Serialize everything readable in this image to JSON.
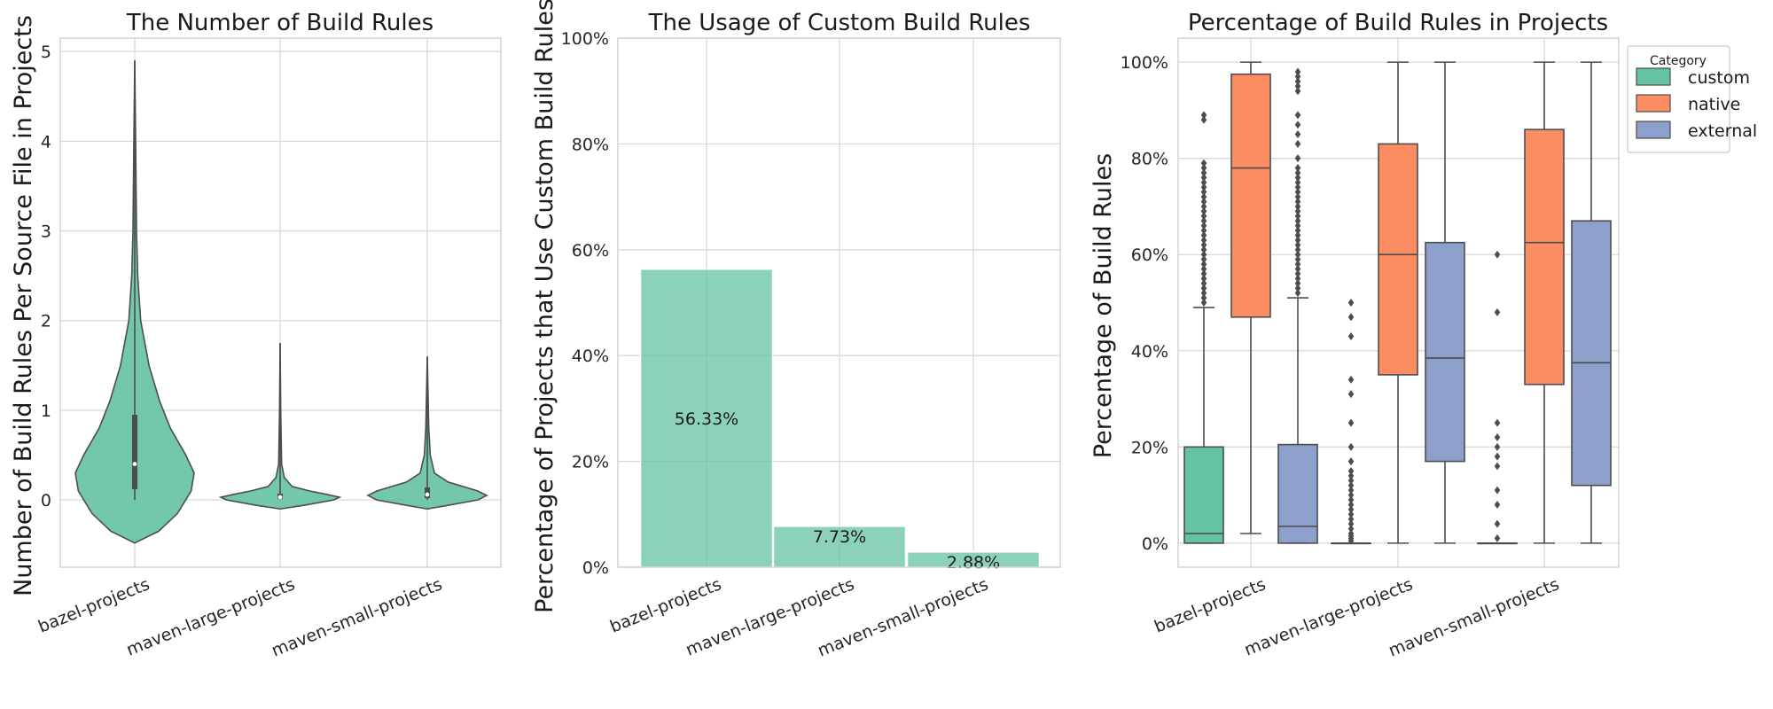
{
  "chart_data": [
    {
      "type": "violin",
      "title": "The Number of Build Rules",
      "ylabel": "Number of Build Rules Per Source File in Projects",
      "xlabel": "",
      "ylim": [
        -0.75,
        5.15
      ],
      "yticks": [
        0,
        1,
        2,
        3,
        4,
        5
      ],
      "grid": true,
      "color": "#66c2a5",
      "categories": [
        "bazel-projects",
        "maven-large-projects",
        "maven-small-projects"
      ],
      "distributions": [
        {
          "min": 0.0,
          "max": 4.9,
          "q1": 0.12,
          "median": 0.4,
          "q3": 0.95,
          "profile": [
            [
              -0.48,
              0.0
            ],
            [
              -0.35,
              0.4
            ],
            [
              -0.15,
              0.72
            ],
            [
              0.1,
              0.95
            ],
            [
              0.3,
              1.0
            ],
            [
              0.5,
              0.86
            ],
            [
              0.8,
              0.6
            ],
            [
              1.1,
              0.42
            ],
            [
              1.5,
              0.24
            ],
            [
              2.0,
              0.1
            ],
            [
              2.5,
              0.05
            ],
            [
              3.0,
              0.03
            ],
            [
              4.0,
              0.015
            ],
            [
              4.9,
              0.0
            ]
          ]
        },
        {
          "min": 0.0,
          "max": 1.75,
          "q1": 0.01,
          "median": 0.03,
          "q3": 0.07,
          "profile": [
            [
              -0.1,
              0.0
            ],
            [
              -0.06,
              0.4
            ],
            [
              0.0,
              0.9
            ],
            [
              0.03,
              1.0
            ],
            [
              0.06,
              0.8
            ],
            [
              0.1,
              0.5
            ],
            [
              0.15,
              0.2
            ],
            [
              0.25,
              0.07
            ],
            [
              0.4,
              0.025
            ],
            [
              1.0,
              0.01
            ],
            [
              1.75,
              0.0
            ]
          ]
        },
        {
          "min": 0.0,
          "max": 1.6,
          "q1": 0.02,
          "median": 0.06,
          "q3": 0.14,
          "profile": [
            [
              -0.1,
              0.0
            ],
            [
              -0.06,
              0.35
            ],
            [
              0.0,
              0.85
            ],
            [
              0.05,
              1.0
            ],
            [
              0.1,
              0.85
            ],
            [
              0.2,
              0.35
            ],
            [
              0.3,
              0.12
            ],
            [
              0.5,
              0.05
            ],
            [
              0.8,
              0.025
            ],
            [
              1.6,
              0.0
            ]
          ]
        }
      ]
    },
    {
      "type": "bar",
      "title": "The Usage of Custom Build Rules",
      "ylabel": "Percentage of Projects that Use Custom Build Rules",
      "xlabel": "",
      "ylim": [
        0,
        100
      ],
      "yticks": [
        0,
        20,
        40,
        60,
        80,
        100
      ],
      "yticklabels": [
        "0%",
        "20%",
        "40%",
        "60%",
        "80%",
        "100%"
      ],
      "grid": true,
      "color": "#66c2a5",
      "categories": [
        "bazel-projects",
        "maven-large-projects",
        "maven-small-projects"
      ],
      "values": [
        56.33,
        7.73,
        2.88
      ],
      "labels": [
        "56.33%",
        "7.73%",
        "2.88%"
      ]
    },
    {
      "type": "box",
      "title": "Percentage of Build Rules in Projects",
      "ylabel": "Percentage of Build Rules",
      "xlabel": "",
      "ylim": [
        -5,
        105
      ],
      "yticks": [
        0,
        20,
        40,
        60,
        80,
        100
      ],
      "yticklabels": [
        "0%",
        "20%",
        "40%",
        "60%",
        "80%",
        "100%"
      ],
      "grid": true,
      "legend": {
        "title": "Category",
        "position": "outside-top-right"
      },
      "categories": [
        "bazel-projects",
        "maven-large-projects",
        "maven-small-projects"
      ],
      "series": [
        {
          "name": "custom",
          "color": "#66c2a5",
          "boxes": [
            {
              "min": 0,
              "q1": 0,
              "median": 2,
              "q3": 20,
              "max": 49,
              "outliers": [
                50,
                51,
                52,
                53,
                54,
                55,
                56,
                57,
                58,
                59,
                60,
                61,
                62,
                63,
                64,
                65,
                66,
                67,
                68,
                69,
                70,
                71,
                72,
                73,
                74,
                75,
                76,
                77,
                78,
                79,
                88,
                89
              ]
            },
            {
              "min": 0,
              "q1": 0,
              "median": 0,
              "q3": 0,
              "max": 0,
              "outliers": [
                0.5,
                1,
                1.5,
                2,
                3,
                4,
                5,
                6,
                7,
                8,
                9,
                10,
                11,
                12,
                13,
                14,
                15,
                17,
                20,
                25,
                31,
                34,
                43,
                47,
                50
              ]
            },
            {
              "min": 0,
              "q1": 0,
              "median": 0,
              "q3": 0,
              "max": 0,
              "outliers": [
                1,
                4,
                8,
                11,
                16,
                18,
                20,
                22,
                25,
                48,
                60
              ]
            }
          ]
        },
        {
          "name": "native",
          "color": "#fc8d62",
          "boxes": [
            {
              "min": 2,
              "q1": 47,
              "median": 78,
              "q3": 97.5,
              "max": 100,
              "outliers": []
            },
            {
              "min": 0,
              "q1": 35,
              "median": 60,
              "q3": 83,
              "max": 100,
              "outliers": []
            },
            {
              "min": 0,
              "q1": 33,
              "median": 62.5,
              "q3": 86,
              "max": 100,
              "outliers": []
            }
          ]
        },
        {
          "name": "external",
          "color": "#8da0cb",
          "boxes": [
            {
              "min": 0,
              "q1": 0,
              "median": 3.5,
              "q3": 20.5,
              "max": 51,
              "outliers": [
                52,
                53,
                54,
                55,
                56,
                57,
                58,
                59,
                60,
                61,
                62,
                63,
                64,
                65,
                66,
                67,
                68,
                69,
                70,
                71,
                72,
                73,
                74,
                75,
                76,
                77,
                78,
                80,
                83,
                85,
                87,
                89,
                94,
                95,
                96,
                97,
                98
              ]
            },
            {
              "min": 0,
              "q1": 17,
              "median": 38.5,
              "q3": 62.5,
              "max": 100,
              "outliers": []
            },
            {
              "min": 0,
              "q1": 12,
              "median": 37.5,
              "q3": 67,
              "max": 100,
              "outliers": []
            }
          ]
        }
      ]
    }
  ]
}
